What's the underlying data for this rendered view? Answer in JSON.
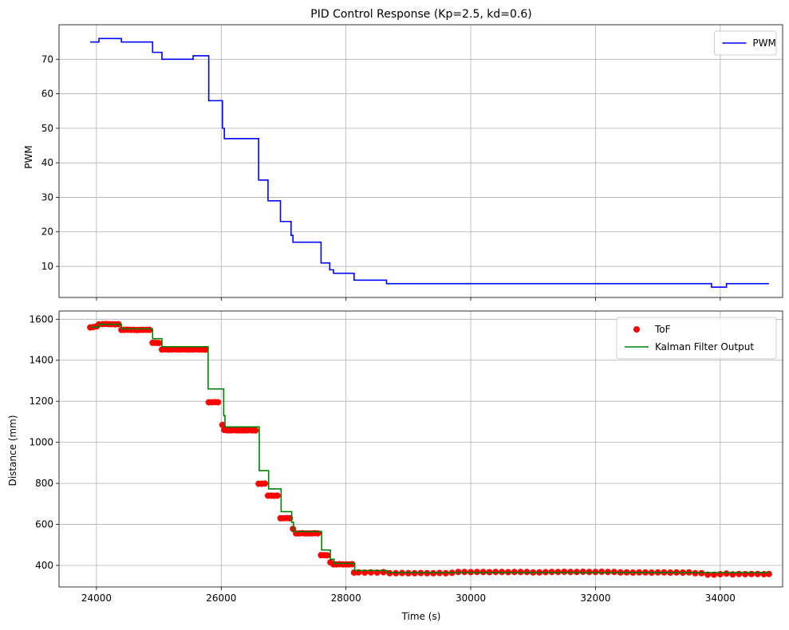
{
  "chart_data": [
    {
      "type": "line",
      "title": "PID Control Response (Kp=2.5, kd=0.6)",
      "xlabel": "",
      "ylabel": "PWM",
      "xlim": [
        23400,
        35000
      ],
      "ylim": [
        1,
        80
      ],
      "xticks": [
        24000,
        26000,
        28000,
        30000,
        32000,
        34000
      ],
      "show_xtick_labels": false,
      "yticks": [
        10,
        20,
        30,
        40,
        50,
        60,
        70
      ],
      "grid": true,
      "legend": "upper-right",
      "series": [
        {
          "name": "PWM",
          "color": "#0000ff",
          "step": true,
          "x": [
            23900,
            24040,
            24400,
            24900,
            25050,
            25550,
            25800,
            26020,
            26050,
            26600,
            26750,
            26950,
            27120,
            27150,
            27600,
            27740,
            27800,
            28130,
            28650,
            33860,
            34100,
            34780
          ],
          "y": [
            75,
            76,
            75,
            72,
            70,
            71,
            58,
            50,
            47,
            35,
            29,
            23,
            19,
            17,
            11,
            9,
            8,
            6,
            5,
            4,
            5,
            5
          ]
        }
      ]
    },
    {
      "type": "line",
      "title": "",
      "xlabel": "Time (s)",
      "ylabel": "Distance (mm)",
      "xlim": [
        23400,
        35000
      ],
      "ylim": [
        295,
        1640
      ],
      "xticks": [
        24000,
        26000,
        28000,
        30000,
        32000,
        34000
      ],
      "yticks": [
        400,
        600,
        800,
        1000,
        1200,
        1400,
        1600
      ],
      "grid": true,
      "legend": "upper-right",
      "series": [
        {
          "name": "ToF",
          "kind": "scatter",
          "color": "#ff0000",
          "x": [
            23900,
            23950,
            24000,
            24040,
            24100,
            24150,
            24200,
            24250,
            24300,
            24350,
            24400,
            24450,
            24500,
            24550,
            24600,
            24650,
            24700,
            24750,
            24800,
            24850,
            24900,
            24950,
            25000,
            25050,
            25100,
            25150,
            25200,
            25250,
            25300,
            25350,
            25400,
            25450,
            25500,
            25550,
            25600,
            25650,
            25700,
            25750,
            25800,
            25850,
            25900,
            25950,
            26020,
            26050,
            26100,
            26150,
            26200,
            26250,
            26300,
            26350,
            26400,
            26450,
            26500,
            26550,
            26600,
            26650,
            26700,
            26750,
            26800,
            26850,
            26900,
            26950,
            27000,
            27050,
            27100,
            27150,
            27200,
            27250,
            27300,
            27350,
            27400,
            27450,
            27500,
            27550,
            27600,
            27650,
            27700,
            27750,
            27800,
            27850,
            27900,
            27950,
            28000,
            28050,
            28100,
            28130,
            28200,
            28300,
            28400,
            28500,
            28600,
            28700,
            28800,
            28900,
            29000,
            29100,
            29200,
            29300,
            29400,
            29500,
            29600,
            29700,
            29800,
            29900,
            30000,
            30100,
            30200,
            30300,
            30400,
            30500,
            30600,
            30700,
            30800,
            30900,
            31000,
            31100,
            31200,
            31300,
            31400,
            31500,
            31600,
            31700,
            31800,
            31900,
            32000,
            32100,
            32200,
            32300,
            32400,
            32500,
            32600,
            32700,
            32800,
            32900,
            33000,
            33100,
            33200,
            33300,
            33400,
            33500,
            33600,
            33700,
            33800,
            33900,
            34000,
            34100,
            34200,
            34300,
            34400,
            34500,
            34600,
            34700,
            34780
          ],
          "y": [
            1560,
            1562,
            1565,
            1575,
            1576,
            1577,
            1576,
            1576,
            1575,
            1576,
            1548,
            1548,
            1549,
            1548,
            1548,
            1547,
            1548,
            1548,
            1548,
            1548,
            1485,
            1485,
            1484,
            1452,
            1453,
            1452,
            1452,
            1453,
            1452,
            1452,
            1453,
            1452,
            1452,
            1452,
            1453,
            1452,
            1452,
            1452,
            1195,
            1195,
            1196,
            1195,
            1085,
            1060,
            1058,
            1058,
            1059,
            1058,
            1058,
            1058,
            1058,
            1059,
            1058,
            1058,
            798,
            798,
            799,
            740,
            740,
            739,
            740,
            630,
            630,
            631,
            630,
            578,
            556,
            556,
            557,
            556,
            556,
            556,
            557,
            556,
            450,
            450,
            449,
            415,
            405,
            405,
            406,
            405,
            405,
            405,
            406,
            365,
            366,
            365,
            366,
            365,
            367,
            362,
            362,
            363,
            362,
            362,
            363,
            362,
            362,
            363,
            362,
            364,
            368,
            368,
            367,
            368,
            368,
            367,
            368,
            368,
            367,
            368,
            368,
            368,
            366,
            366,
            367,
            368,
            368,
            369,
            368,
            368,
            369,
            368,
            368,
            369,
            368,
            368,
            366,
            366,
            365,
            366,
            366,
            365,
            366,
            366,
            365,
            366,
            365,
            366,
            362,
            362,
            355,
            355,
            357,
            360,
            356,
            358,
            357,
            358,
            358,
            357,
            358
          ]
        },
        {
          "name": "Kalman Filter Output",
          "kind": "line",
          "color": "#008000",
          "step": true,
          "x": [
            23900,
            24040,
            24400,
            24900,
            25050,
            25790,
            26040,
            26060,
            26610,
            26760,
            26960,
            27130,
            27160,
            27610,
            27750,
            27810,
            28140,
            28660,
            34780
          ],
          "y": [
            1562,
            1575,
            1553,
            1505,
            1466,
            1260,
            1130,
            1075,
            862,
            773,
            662,
            610,
            565,
            475,
            430,
            410,
            375,
            365,
            362
          ]
        }
      ]
    }
  ]
}
